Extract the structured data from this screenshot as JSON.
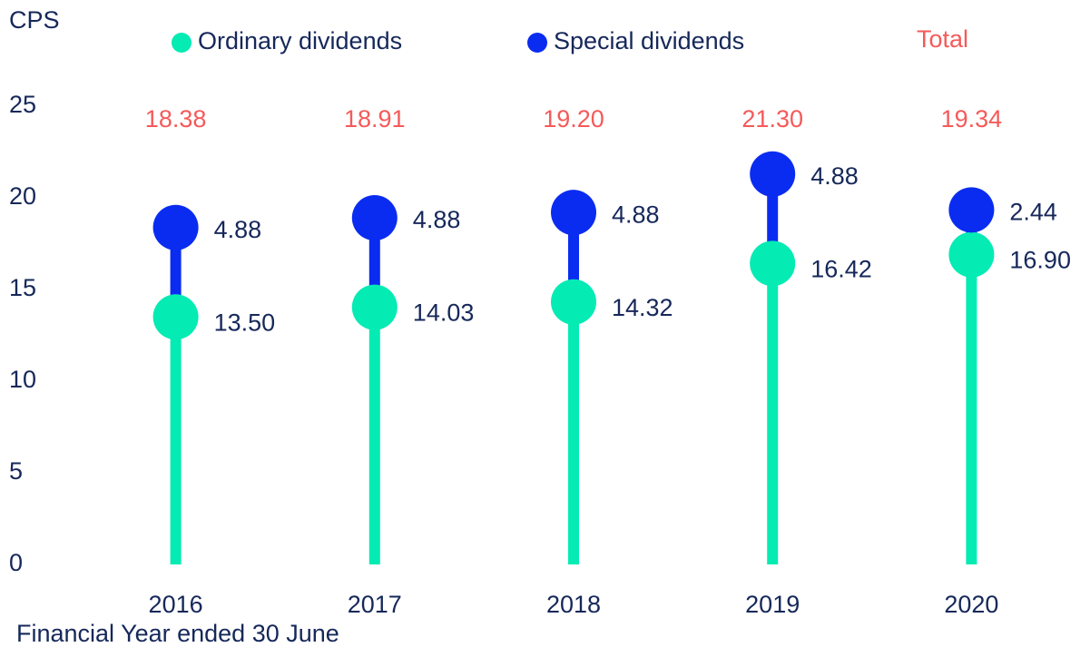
{
  "chart_data": {
    "type": "stacked_lollipop",
    "y_axis_label": "CPS",
    "x_axis_label": "Financial Year ended 30 June",
    "categories": [
      "2016",
      "2017",
      "2018",
      "2019",
      "2020"
    ],
    "series": [
      {
        "name": "Ordinary dividends",
        "color": "#04ebb4",
        "values": [
          13.5,
          14.03,
          14.32,
          16.42,
          16.9
        ],
        "value_labels": [
          "13.50",
          "14.03",
          "14.32",
          "16.42",
          "16.90"
        ]
      },
      {
        "name": "Special dividends",
        "color": "#0a2cf0",
        "values": [
          4.88,
          4.88,
          4.88,
          4.88,
          2.44
        ]
      }
    ],
    "total_name": "Total",
    "total_color": "#f55a5a",
    "total_labels": [
      "18.38",
      "18.91",
      "19.20",
      "21.30",
      "19.34"
    ],
    "ylim": [
      0,
      25
    ],
    "yticks": [
      0,
      5,
      10,
      15,
      20,
      25
    ],
    "grid": false
  }
}
